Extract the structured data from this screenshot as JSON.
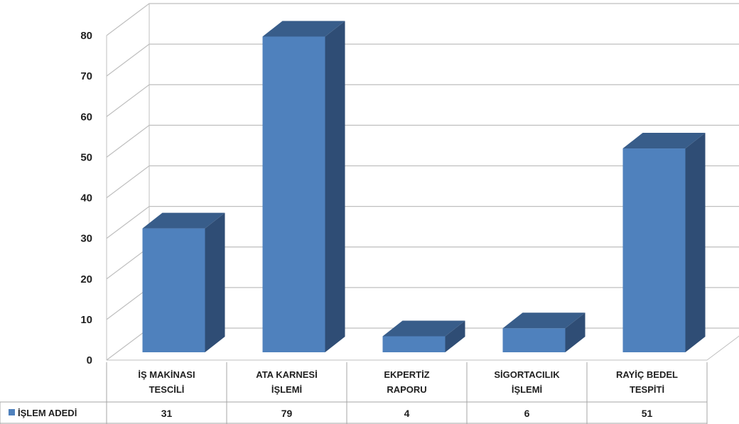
{
  "chart_data": {
    "type": "bar",
    "categories": [
      [
        "İŞ MAKİNASI",
        "TESCİLİ"
      ],
      [
        "ATA KARNESİ",
        "İŞLEMİ"
      ],
      [
        "EKPERTİZ",
        "RAPORU"
      ],
      [
        "SİGORTACILIK",
        "İŞLEMİ"
      ],
      [
        "RAYİÇ BEDEL",
        "TESPİTİ"
      ]
    ],
    "series": [
      {
        "name": "İŞLEM ADEDİ",
        "values": [
          31,
          79,
          4,
          6,
          51
        ],
        "color": "#4f81bd"
      }
    ],
    "yticks": [
      "0",
      "10",
      "20",
      "30",
      "40",
      "50",
      "60",
      "70",
      "80"
    ],
    "ylim": [
      0,
      80
    ],
    "grid": true,
    "view": "3d",
    "data_table": true,
    "colors": {
      "front": "#4f81bd",
      "top": "#385d8a",
      "side": "#2f4d75",
      "grid": "#bfbfbf"
    }
  }
}
